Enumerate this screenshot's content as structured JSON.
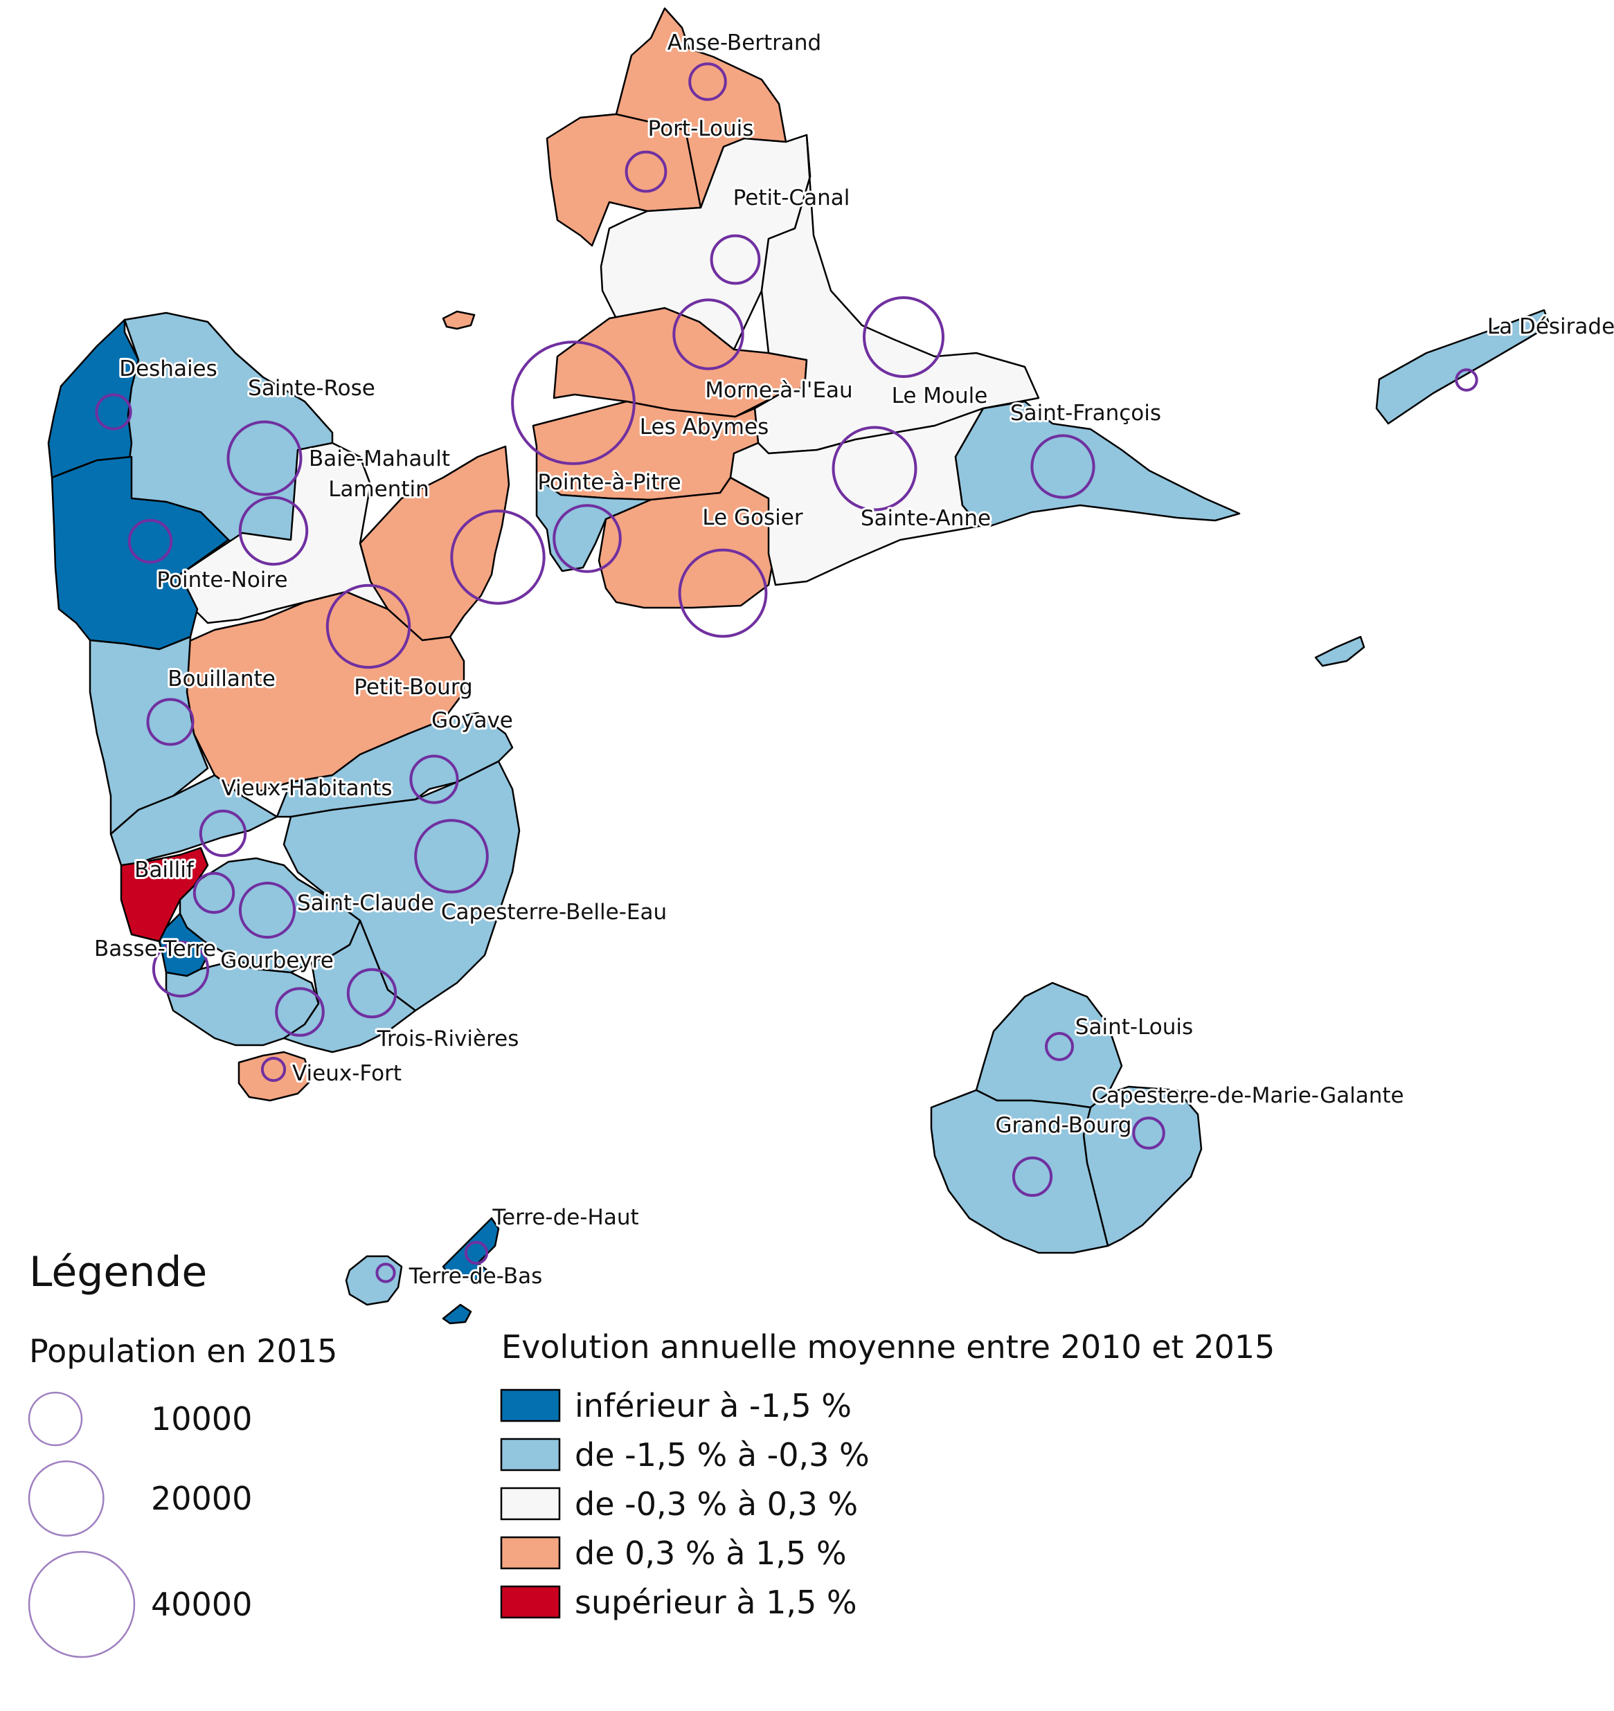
{
  "colors": {
    "cls1": "#0570b0",
    "cls2": "#92c5de",
    "cls3": "#f7f7f7",
    "cls4": "#f4a582",
    "cls5": "#ca0020",
    "bubble": "#7030a0",
    "legend_bubble": "#9f7fc0"
  },
  "communes": [
    {
      "name": "Anse-Bertrand",
      "cls": 4,
      "pop": 4600
    },
    {
      "name": "Port-Louis",
      "cls": 4,
      "pop": 5600
    },
    {
      "name": "Petit-Canal",
      "cls": 3,
      "pop": 8200
    },
    {
      "name": "Morne-à-l'Eau",
      "cls": 4,
      "pop": 17100
    },
    {
      "name": "Le Moule",
      "cls": 3,
      "pop": 22500
    },
    {
      "name": "La Désirade",
      "cls": 2,
      "pop": 1500
    },
    {
      "name": "Les Abymes",
      "cls": 4,
      "pop": 53500
    },
    {
      "name": "Pointe-à-Pitre",
      "cls": 2,
      "pop": 15800
    },
    {
      "name": "Le Gosier",
      "cls": 4,
      "pop": 27000
    },
    {
      "name": "Sainte-Anne",
      "cls": 3,
      "pop": 24500
    },
    {
      "name": "Saint-François",
      "cls": 2,
      "pop": 13800
    },
    {
      "name": "Deshaies",
      "cls": 1,
      "pop": 4200
    },
    {
      "name": "Sainte-Rose",
      "cls": 2,
      "pop": 19100
    },
    {
      "name": "Baie-Mahault",
      "cls": 4,
      "pop": 30800
    },
    {
      "name": "Lamentin",
      "cls": 3,
      "pop": 16100
    },
    {
      "name": "Pointe-Noire",
      "cls": 1,
      "pop": 6300
    },
    {
      "name": "Petit-Bourg",
      "cls": 4,
      "pop": 24300
    },
    {
      "name": "Bouillante",
      "cls": 2,
      "pop": 7300
    },
    {
      "name": "Goyave",
      "cls": 2,
      "pop": 7800
    },
    {
      "name": "Vieux-Habitants",
      "cls": 2,
      "pop": 7200
    },
    {
      "name": "Capesterre-Belle-Eau",
      "cls": 2,
      "pop": 18600
    },
    {
      "name": "Baillif",
      "cls": 5,
      "pop": 5500
    },
    {
      "name": "Saint-Claude",
      "cls": 2,
      "pop": 10600
    },
    {
      "name": "Basse-Terre",
      "cls": 1,
      "pop": 10600
    },
    {
      "name": "Gourbeyre",
      "cls": 2,
      "pop": 7900
    },
    {
      "name": "Trois-Rivières",
      "cls": 2,
      "pop": 8100
    },
    {
      "name": "Vieux-Fort",
      "cls": 4,
      "pop": 1800
    },
    {
      "name": "Saint-Louis",
      "cls": 2,
      "pop": 2500
    },
    {
      "name": "Capesterre-de-Marie-Galante",
      "cls": 2,
      "pop": 3300
    },
    {
      "name": "Grand-Bourg",
      "cls": 2,
      "pop": 5100
    },
    {
      "name": "Terre-de-Haut",
      "cls": 1,
      "pop": 1600
    },
    {
      "name": "Terre-de-Bas",
      "cls": 2,
      "pop": 1100
    }
  ],
  "legend": {
    "title": "Légende",
    "size_title": "Population en 2015",
    "sizes": [
      {
        "value": 10000,
        "label": "10000"
      },
      {
        "value": 20000,
        "label": "20000"
      },
      {
        "value": 40000,
        "label": "40000"
      }
    ],
    "color_title": "Evolution annuelle moyenne entre 2010 et 2015",
    "classes": [
      {
        "cls": 1,
        "label": "inférieur à -1,5 %"
      },
      {
        "cls": 2,
        "label": "de -1,5 % à -0,3 %"
      },
      {
        "cls": 3,
        "label": "de -0,3 % à 0,3 %"
      },
      {
        "cls": 4,
        "label": "de 0,3 % à 1,5 %"
      },
      {
        "cls": 5,
        "label": "supérieur à 1,5 %"
      }
    ]
  }
}
